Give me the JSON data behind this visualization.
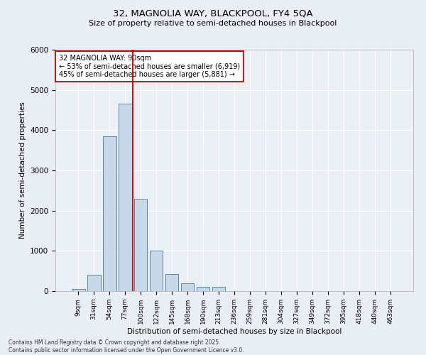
{
  "title1": "32, MAGNOLIA WAY, BLACKPOOL, FY4 5QA",
  "title2": "Size of property relative to semi-detached houses in Blackpool",
  "xlabel": "Distribution of semi-detached houses by size in Blackpool",
  "ylabel": "Number of semi-detached properties",
  "categories": [
    "9sqm",
    "31sqm",
    "54sqm",
    "77sqm",
    "100sqm",
    "122sqm",
    "145sqm",
    "168sqm",
    "190sqm",
    "213sqm",
    "236sqm",
    "259sqm",
    "281sqm",
    "304sqm",
    "327sqm",
    "349sqm",
    "372sqm",
    "395sqm",
    "418sqm",
    "440sqm",
    "463sqm"
  ],
  "values": [
    50,
    410,
    3850,
    4650,
    2300,
    1000,
    420,
    200,
    110,
    110,
    0,
    0,
    0,
    0,
    0,
    0,
    0,
    0,
    0,
    0,
    0
  ],
  "bar_color": "#c8d8e8",
  "bar_edge_color": "#5588aa",
  "red_line_x": 3.5,
  "annotation_title": "32 MAGNOLIA WAY: 90sqm",
  "annotation_line1": "← 53% of semi-detached houses are smaller (6,919)",
  "annotation_line2": "45% of semi-detached houses are larger (5,881) →",
  "annotation_box_color": "#ffffff",
  "annotation_box_edge": "#cc0000",
  "ylim": [
    0,
    6000
  ],
  "footer1": "Contains HM Land Registry data © Crown copyright and database right 2025.",
  "footer2": "Contains public sector information licensed under the Open Government Licence v3.0.",
  "bg_color": "#e8eef4",
  "plot_bg_color": "#eaf0f6"
}
